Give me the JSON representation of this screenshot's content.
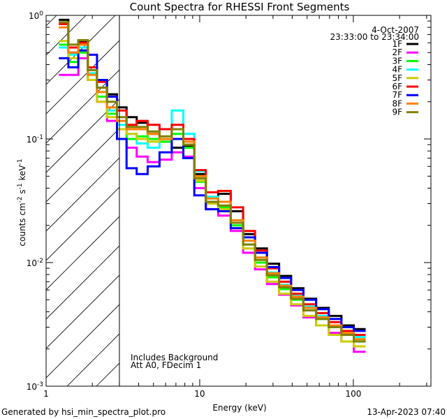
{
  "chart_data": {
    "type": "line",
    "title": "Count Spectra for RHESSI Front Segments",
    "xlabel": "Energy (keV)",
    "ylabel_main": "counts cm",
    "ylabel_exp1": "-2",
    "ylabel_s": " s",
    "ylabel_exp2": "-1",
    "ylabel_kev": " keV",
    "ylabel_exp3": "-1",
    "x_scale": "log",
    "y_scale": "log",
    "xlim": [
      1,
      320
    ],
    "ylim": [
      0.001,
      1.0
    ],
    "x_ticks": [
      {
        "value": 1,
        "label": "1"
      },
      {
        "value": 10,
        "label": "10"
      },
      {
        "value": 100,
        "label": "100"
      }
    ],
    "y_ticks": [
      {
        "value": 1.0,
        "base": "10",
        "exp": "0"
      },
      {
        "value": 0.1,
        "base": "10",
        "exp": "-1"
      },
      {
        "value": 0.01,
        "base": "10",
        "exp": "-2"
      },
      {
        "value": 0.001,
        "base": "10",
        "exp": "-3"
      }
    ],
    "date": "4-Oct-2007",
    "time_range": "23:33:00 to 23:34:00",
    "hatched_region_max_keV": 3.0,
    "annotations": [
      "Includes Background",
      "Att A0, FDecim 1"
    ],
    "footer_left": "Generated by hsi_min_spectra_plot.pro",
    "footer_right": "13-Apr-2023 07:40",
    "series": [
      {
        "name": "1F",
        "color": "#000000",
        "values": [
          0.92,
          0.5,
          0.62,
          0.36,
          0.3,
          0.23,
          0.18,
          0.15,
          0.135,
          0.11,
          0.095,
          0.085,
          0.088,
          0.052,
          0.034,
          0.036,
          0.026,
          0.017,
          0.013,
          0.0098,
          0.0078,
          0.0062,
          0.0051,
          0.0043,
          0.0037,
          0.0031,
          0.0029
        ]
      },
      {
        "name": "2F",
        "color": "#ff00ff",
        "values": [
          0.33,
          0.33,
          0.45,
          0.3,
          0.2,
          0.14,
          0.1,
          0.085,
          0.072,
          0.065,
          0.068,
          0.078,
          0.072,
          0.04,
          0.027,
          0.024,
          0.018,
          0.012,
          0.0088,
          0.0067,
          0.0055,
          0.0045,
          0.0036,
          0.0031,
          0.0027,
          0.0023,
          0.0019
        ]
      },
      {
        "name": "3F",
        "color": "#00ff00",
        "values": [
          0.58,
          0.42,
          0.5,
          0.3,
          0.22,
          0.16,
          0.12,
          0.1,
          0.105,
          0.1,
          0.095,
          0.11,
          0.085,
          0.045,
          0.03,
          0.028,
          0.02,
          0.014,
          0.01,
          0.0076,
          0.0061,
          0.005,
          0.0041,
          0.0035,
          0.003,
          0.0026,
          0.0024
        ]
      },
      {
        "name": "4F",
        "color": "#00ffff",
        "values": [
          0.55,
          0.48,
          0.55,
          0.34,
          0.24,
          0.17,
          0.13,
          0.11,
          0.092,
          0.085,
          0.12,
          0.17,
          0.11,
          0.055,
          0.034,
          0.031,
          0.022,
          0.015,
          0.011,
          0.0083,
          0.0066,
          0.0054,
          0.0044,
          0.0037,
          0.0031,
          0.0027,
          0.0025
        ]
      },
      {
        "name": "5F",
        "color": "#cccc00",
        "values": [
          0.62,
          0.45,
          0.52,
          0.3,
          0.2,
          0.15,
          0.12,
          0.11,
          0.1,
          0.095,
          0.1,
          0.12,
          0.09,
          0.046,
          0.03,
          0.027,
          0.019,
          0.013,
          0.0093,
          0.007,
          0.0056,
          0.0046,
          0.0037,
          0.0031,
          0.0026,
          0.0023,
          0.0021
        ]
      },
      {
        "name": "6F",
        "color": "#ff0000",
        "values": [
          0.85,
          0.55,
          0.6,
          0.38,
          0.29,
          0.22,
          0.17,
          0.13,
          0.14,
          0.13,
          0.12,
          0.13,
          0.1,
          0.056,
          0.037,
          0.038,
          0.028,
          0.018,
          0.0125,
          0.009,
          0.007,
          0.0056,
          0.0046,
          0.0039,
          0.0033,
          0.0028,
          0.0026
        ]
      },
      {
        "name": "7F",
        "color": "#0000ff",
        "values": [
          0.45,
          0.38,
          0.52,
          0.48,
          0.3,
          0.22,
          0.1,
          0.058,
          0.052,
          0.06,
          0.078,
          0.1,
          0.07,
          0.035,
          0.027,
          0.026,
          0.019,
          0.016,
          0.012,
          0.0092,
          0.0075,
          0.006,
          0.005,
          0.0042,
          0.0035,
          0.003,
          0.0028
        ]
      },
      {
        "name": "8F",
        "color": "#ff8000",
        "values": [
          0.8,
          0.5,
          0.58,
          0.33,
          0.24,
          0.18,
          0.14,
          0.12,
          0.12,
          0.11,
          0.1,
          0.12,
          0.095,
          0.05,
          0.033,
          0.031,
          0.022,
          0.015,
          0.011,
          0.0082,
          0.0065,
          0.0053,
          0.0043,
          0.0036,
          0.0031,
          0.0027,
          0.0024
        ]
      },
      {
        "name": "9F",
        "color": "#808000",
        "values": [
          0.88,
          0.58,
          0.63,
          0.36,
          0.26,
          0.2,
          0.15,
          0.125,
          0.125,
          0.115,
          0.105,
          0.12,
          0.09,
          0.048,
          0.031,
          0.029,
          0.021,
          0.014,
          0.0105,
          0.0079,
          0.0063,
          0.0051,
          0.0041,
          0.0035,
          0.003,
          0.0026,
          0.0023
        ]
      }
    ],
    "x": [
      1.3,
      1.5,
      1.75,
      2.0,
      2.3,
      2.7,
      3.1,
      3.6,
      4.2,
      5.0,
      6.0,
      7.2,
      8.5,
      10.0,
      12.0,
      14.5,
      17.5,
      21.0,
      25.0,
      30.0,
      36.0,
      43.0,
      52.0,
      63.0,
      76.0,
      92.0,
      110.0
    ]
  }
}
